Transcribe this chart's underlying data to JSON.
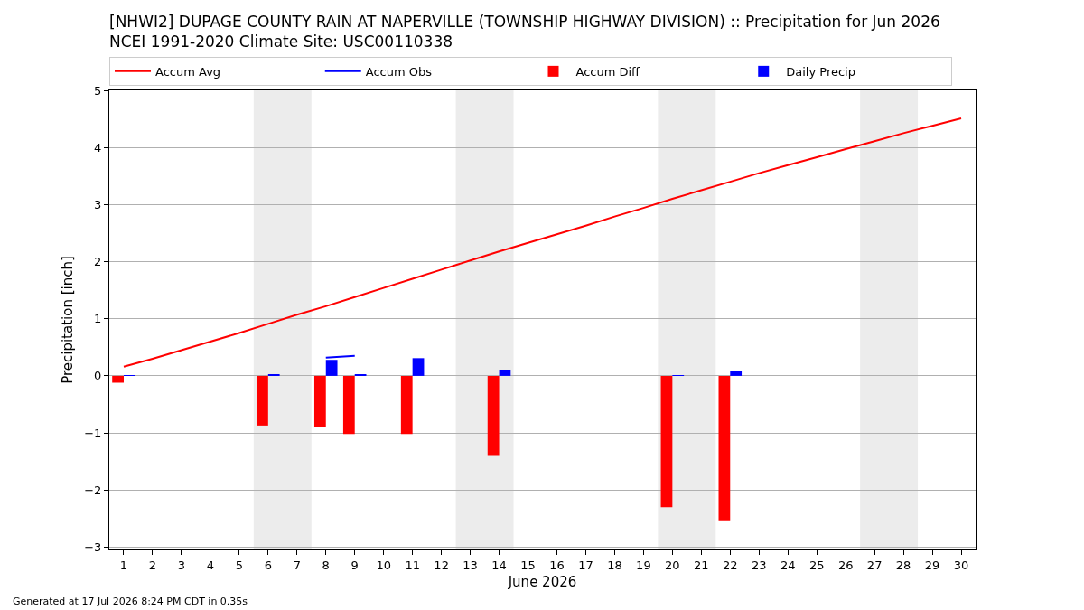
{
  "chart_data": {
    "type": "bar",
    "title": "[NHWI2] DUPAGE COUNTY RAIN AT NAPERVILLE (TOWNSHIP HIGHWAY DIVISION) :: Precipitation for Jun 2026",
    "subtitle": "NCEI 1991-2020 Climate Site: USC00110338",
    "xlabel": "June 2026",
    "ylabel": "Precipitation [inch]",
    "x": [
      1,
      2,
      3,
      4,
      5,
      6,
      7,
      8,
      9,
      10,
      11,
      12,
      13,
      14,
      15,
      16,
      17,
      18,
      19,
      20,
      21,
      22,
      23,
      24,
      25,
      26,
      27,
      28,
      29,
      30
    ],
    "series": [
      {
        "name": "Accum Avg",
        "type": "line",
        "color": "#ff0000",
        "values": [
          0.16,
          0.3,
          0.45,
          0.6,
          0.75,
          0.91,
          1.07,
          1.22,
          1.38,
          1.54,
          1.7,
          1.86,
          2.02,
          2.18,
          2.33,
          2.48,
          2.63,
          2.79,
          2.94,
          3.1,
          3.25,
          3.4,
          3.55,
          3.69,
          3.83,
          3.97,
          4.11,
          4.25,
          4.38,
          4.51
        ]
      },
      {
        "name": "Accum Obs",
        "type": "line",
        "color": "#0000ff",
        "values": [
          null,
          null,
          null,
          null,
          null,
          null,
          null,
          0.32,
          0.35,
          null,
          null,
          null,
          null,
          null,
          null,
          null,
          null,
          null,
          null,
          null,
          null,
          null,
          null,
          null,
          null,
          null,
          null,
          null,
          null,
          null
        ]
      },
      {
        "name": "Accum Diff",
        "color": "#ff0000",
        "values": [
          -0.12,
          null,
          null,
          null,
          null,
          -0.87,
          null,
          -0.9,
          -1.02,
          null,
          -1.02,
          null,
          null,
          -1.4,
          null,
          null,
          null,
          null,
          null,
          -2.3,
          null,
          -2.53,
          null,
          null,
          null,
          null,
          null,
          null,
          null,
          null
        ]
      },
      {
        "name": "Daily Precip",
        "color": "#0000ff",
        "values": [
          0.01,
          null,
          null,
          null,
          null,
          0.03,
          null,
          0.28,
          0.03,
          null,
          0.31,
          null,
          null,
          0.11,
          null,
          null,
          null,
          null,
          null,
          0.01,
          null,
          0.08,
          null,
          null,
          null,
          null,
          null,
          null,
          null,
          null
        ]
      }
    ],
    "xlim": [
      0.5,
      30.5
    ],
    "xticks": [
      1,
      2,
      3,
      4,
      5,
      6,
      7,
      8,
      9,
      10,
      11,
      12,
      13,
      14,
      15,
      16,
      17,
      18,
      19,
      20,
      21,
      22,
      23,
      24,
      25,
      26,
      27,
      28,
      29,
      30
    ],
    "ylim": [
      -3.04,
      5
    ],
    "yticks": [
      {
        "value": -3,
        "label": "−3"
      },
      {
        "value": -2,
        "label": "−2"
      },
      {
        "value": -1,
        "label": "−1"
      },
      0,
      1,
      2,
      3,
      4,
      5
    ],
    "grid": "y",
    "legend": "top",
    "bands": [
      {
        "axis": "x",
        "from": 5.5,
        "to": 7.5,
        "color": "#ececec"
      },
      {
        "axis": "x",
        "from": 12.5,
        "to": 14.5,
        "color": "#ececec"
      },
      {
        "axis": "x",
        "from": 19.5,
        "to": 21.5,
        "color": "#ececec"
      },
      {
        "axis": "x",
        "from": 26.5,
        "to": 28.5,
        "color": "#ececec"
      }
    ],
    "annotations": [
      "Generated at 17 Jul 2026 8:24 PM CDT in 0.35s"
    ]
  }
}
